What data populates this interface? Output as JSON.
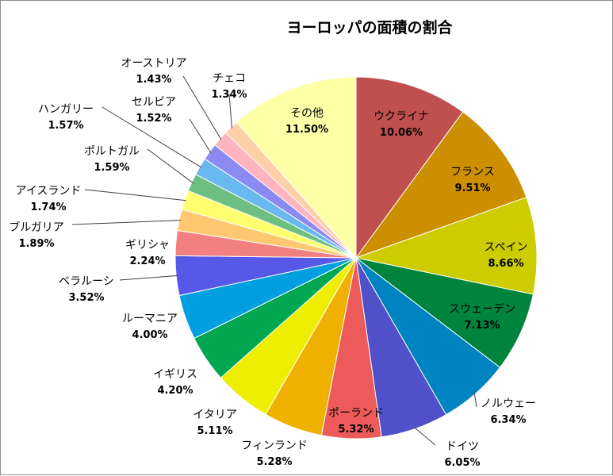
{
  "chart_data": {
    "type": "pie",
    "title": "ヨーロッパの面積の割合",
    "slices": [
      {
        "label": "ウクライナ",
        "value": 10.06,
        "percent_label": "10.06%",
        "color": "#c0504d"
      },
      {
        "label": "フランス",
        "value": 9.51,
        "percent_label": "9.51%",
        "color": "#cc8f00"
      },
      {
        "label": "スペイン",
        "value": 8.66,
        "percent_label": "8.66%",
        "color": "#cccc00"
      },
      {
        "label": "スウェーデン",
        "value": 7.13,
        "percent_label": "7.13%",
        "color": "#00843d"
      },
      {
        "label": "ノルウェー",
        "value": 6.34,
        "percent_label": "6.34%",
        "color": "#0083c1"
      },
      {
        "label": "ドイツ",
        "value": 6.05,
        "percent_label": "6.05%",
        "color": "#5050c8"
      },
      {
        "label": "ポーランド",
        "value": 5.32,
        "percent_label": "5.32%",
        "color": "#ec5a5a"
      },
      {
        "label": "フィンランド",
        "value": 5.28,
        "percent_label": "5.28%",
        "color": "#f0b000"
      },
      {
        "label": "イタリア",
        "value": 5.11,
        "percent_label": "5.11%",
        "color": "#eeee00"
      },
      {
        "label": "イギリス",
        "value": 4.2,
        "percent_label": "4.20%",
        "color": "#00a650"
      },
      {
        "label": "ルーマニア",
        "value": 4.0,
        "percent_label": "4.00%",
        "color": "#00a0e0"
      },
      {
        "label": "ベラルーシ",
        "value": 3.52,
        "percent_label": "3.52%",
        "color": "#5858e8"
      },
      {
        "label": "ギリシャ",
        "value": 2.24,
        "percent_label": "2.24%",
        "color": "#f28080"
      },
      {
        "label": "ブルガリア",
        "value": 1.89,
        "percent_label": "1.89%",
        "color": "#ffc870"
      },
      {
        "label": "アイスランド",
        "value": 1.74,
        "percent_label": "1.74%",
        "color": "#ffff70"
      },
      {
        "label": "ポルトガル",
        "value": 1.59,
        "percent_label": "1.59%",
        "color": "#6cbf80"
      },
      {
        "label": "ハンガリー",
        "value": 1.57,
        "percent_label": "1.57%",
        "color": "#6ab8f0"
      },
      {
        "label": "セルビア",
        "value": 1.52,
        "percent_label": "1.52%",
        "color": "#8a8af0"
      },
      {
        "label": "オーストリア",
        "value": 1.43,
        "percent_label": "1.43%",
        "color": "#ffb4c0"
      },
      {
        "label": "チェコ",
        "value": 1.34,
        "percent_label": "1.34%",
        "color": "#ffd0a8"
      },
      {
        "label": "その他",
        "value": 11.5,
        "percent_label": "11.50%",
        "color": "#ffffa8"
      }
    ],
    "legend": "none",
    "start_angle": "12 o'clock",
    "direction": "clockwise"
  }
}
